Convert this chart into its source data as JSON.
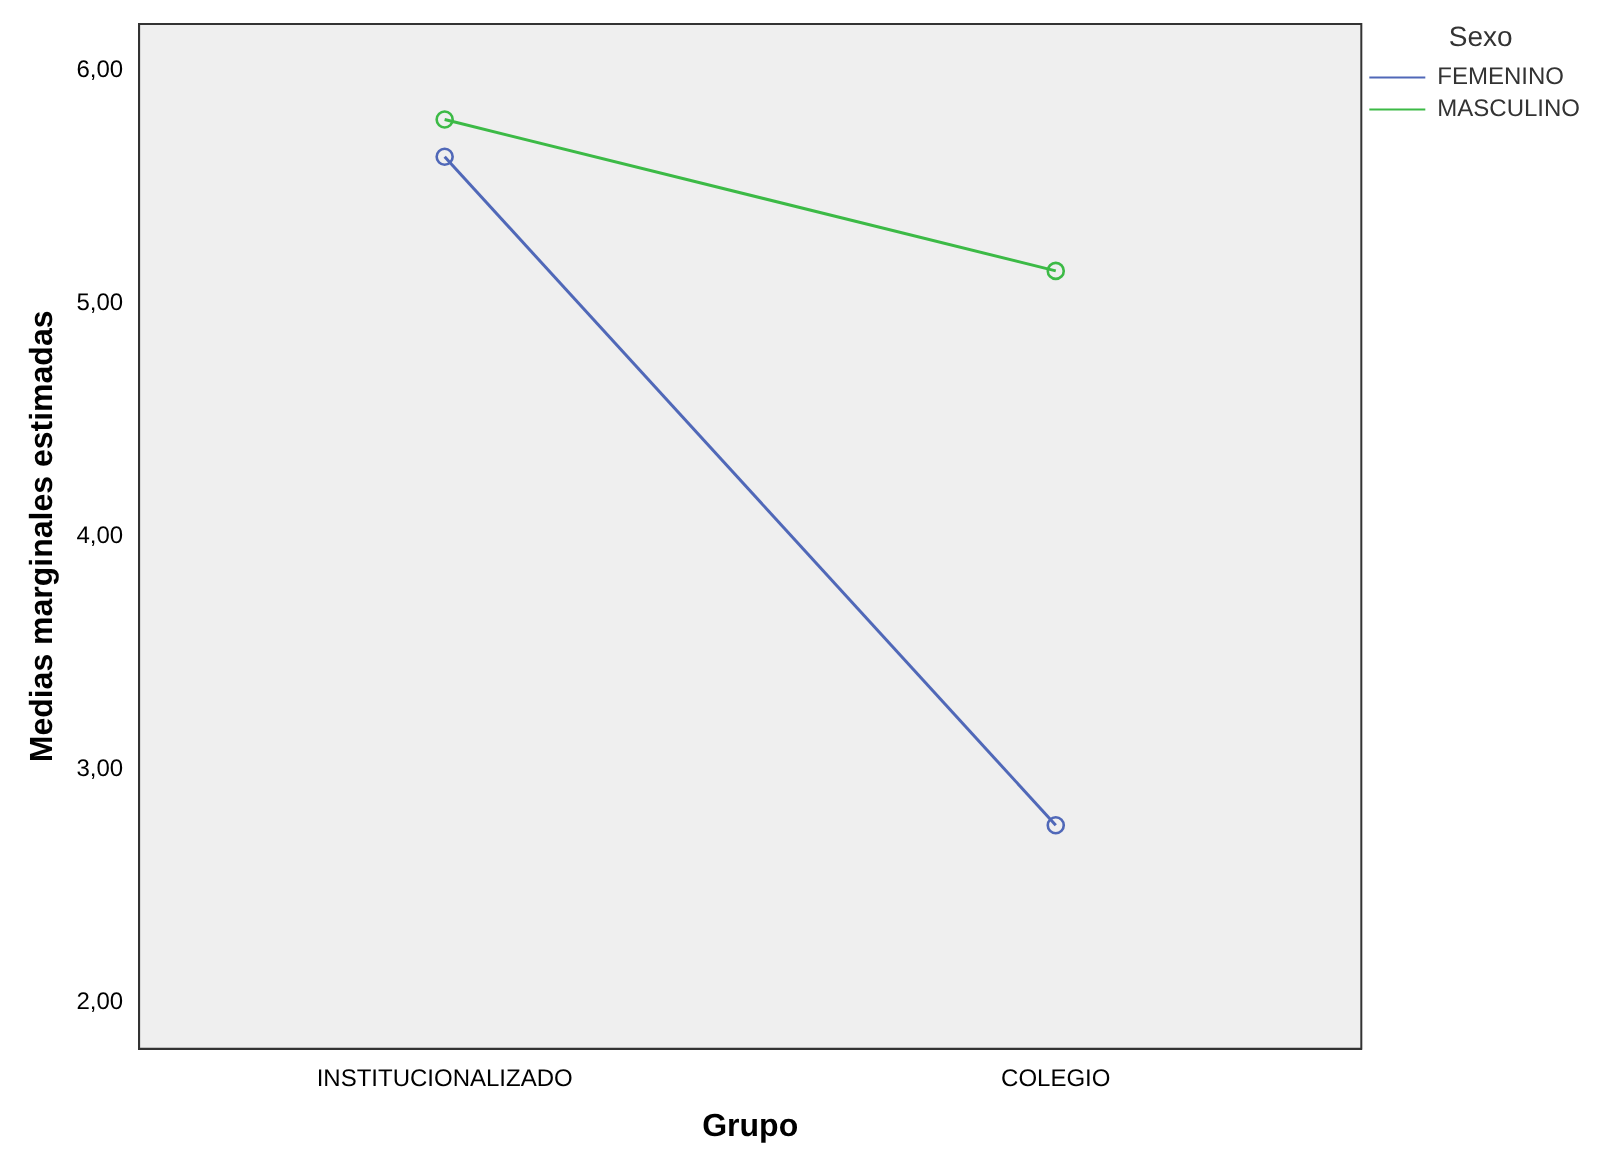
{
  "chart_data": {
    "type": "line",
    "xlabel": "Grupo",
    "ylabel": "Medias marginales estimadas",
    "legend_title": "Sexo",
    "legend": "top right",
    "marker": "circle",
    "line_style": "solid",
    "grid": false,
    "categories": [
      "INSTITUCIONALIZADO",
      "COLEGIO"
    ],
    "series": [
      {
        "name": "FEMENINO",
        "color": "#5068b8",
        "values": [
          5.63,
          2.76
        ]
      },
      {
        "name": "MASCULINO",
        "color": "#3cba46",
        "values": [
          5.79,
          5.14
        ]
      }
    ],
    "ylim": [
      1.8,
      6.2
    ],
    "yticks": [
      {
        "value": 2,
        "label": "2,00"
      },
      {
        "value": 3,
        "label": "3,00"
      },
      {
        "value": 4,
        "label": "4,00"
      },
      {
        "value": 5,
        "label": "5,00"
      },
      {
        "value": 6,
        "label": "6,00"
      }
    ]
  }
}
